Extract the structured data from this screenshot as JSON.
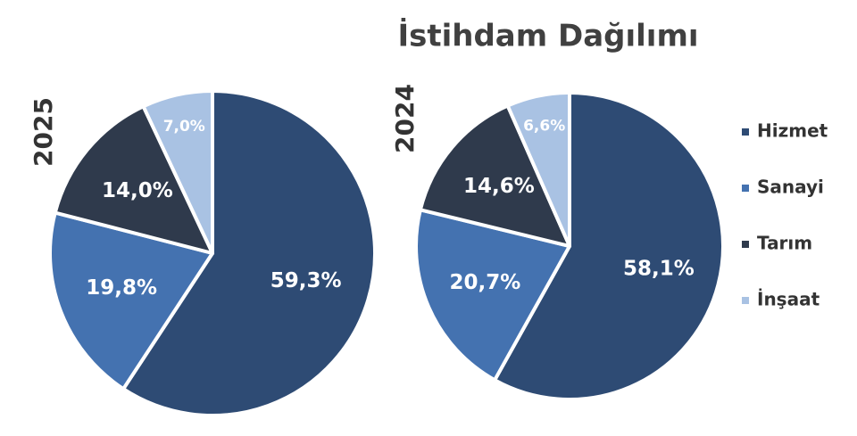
{
  "title": "İstihdam Dağılımı",
  "chart_data": [
    {
      "type": "pie",
      "label": "2025",
      "categories": [
        "Hizmet",
        "Sanayi",
        "Tarım",
        "İnşaat"
      ],
      "values": [
        59.3,
        19.8,
        14.0,
        7.0
      ],
      "value_labels": [
        "59,3%",
        "19,8%",
        "14,0%",
        "7,0%"
      ],
      "colors": [
        "#2e4b74",
        "#4472b0",
        "#2f3a4c",
        "#a9c2e3"
      ]
    },
    {
      "type": "pie",
      "label": "2024",
      "categories": [
        "Hizmet",
        "Sanayi",
        "Tarım",
        "İnşaat"
      ],
      "values": [
        58.1,
        20.7,
        14.6,
        6.6
      ],
      "value_labels": [
        "58,1%",
        "20,7%",
        "14,6%",
        "6,6%"
      ],
      "colors": [
        "#2e4b74",
        "#4472b0",
        "#2f3a4c",
        "#a9c2e3"
      ],
      "legend": "right"
    }
  ]
}
